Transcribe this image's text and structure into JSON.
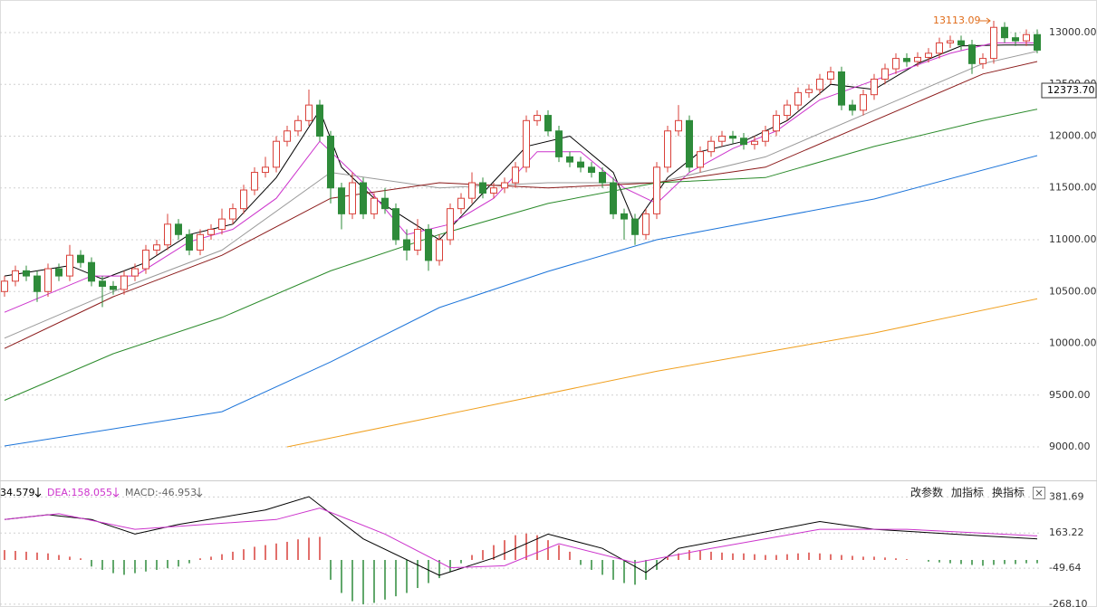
{
  "chart_data": [
    {
      "type": "candlestick",
      "open": [
        10500,
        10600,
        10700,
        10650,
        10500,
        10720,
        10650,
        10850,
        10780,
        10600,
        10550,
        10520,
        10650,
        10720,
        10900,
        10950,
        11150,
        11050,
        10900,
        11050,
        11100,
        11200,
        11300,
        11480,
        11650,
        11700,
        11950,
        12050,
        12150,
        12300,
        12000,
        11500,
        11250,
        11550,
        11250,
        11400,
        11300,
        11000,
        10900,
        11100,
        10800,
        11000,
        11300,
        11400,
        11550,
        11450,
        11500,
        11550,
        11700,
        12150,
        12200,
        12050,
        11800,
        11750,
        11700,
        11650,
        11550,
        11250,
        11200,
        11050,
        11250,
        11700,
        12050,
        12150,
        11700,
        11850,
        11950,
        12000,
        11980,
        11920,
        11950,
        12050,
        12200,
        12300,
        12420,
        12450,
        12550,
        12620,
        12300,
        12250,
        12400,
        12550,
        12650,
        12750,
        12720,
        12760,
        12800,
        12900,
        12920,
        12880,
        12700,
        12750,
        13050,
        12950,
        12920,
        12980
      ],
      "high": [
        10650,
        10750,
        10750,
        10700,
        10770,
        10770,
        10950,
        10900,
        10830,
        10650,
        10600,
        10700,
        10770,
        10950,
        11000,
        11250,
        11200,
        11100,
        11100,
        11150,
        11300,
        11350,
        11530,
        11700,
        11800,
        12000,
        12100,
        12200,
        12450,
        12350,
        12050,
        11550,
        11650,
        11600,
        11450,
        11500,
        11350,
        11100,
        11200,
        11150,
        11050,
        11350,
        11450,
        11650,
        11600,
        11550,
        11600,
        11750,
        12200,
        12250,
        12250,
        12100,
        11850,
        11800,
        11750,
        11700,
        11600,
        11300,
        11250,
        11300,
        11750,
        12100,
        12300,
        12200,
        11900,
        12000,
        12050,
        12050,
        12030,
        12000,
        12100,
        12250,
        12350,
        12470,
        12500,
        12600,
        12670,
        12670,
        12350,
        12450,
        12600,
        12700,
        12800,
        12800,
        12810,
        12850,
        12950,
        12970,
        12970,
        12930,
        12800,
        13113.09,
        13100,
        13000,
        13030,
        13030
      ],
      "low": [
        10450,
        10550,
        10600,
        10400,
        10450,
        10600,
        10600,
        10730,
        10550,
        10350,
        10470,
        10470,
        10600,
        10670,
        10850,
        10900,
        11000,
        10850,
        10850,
        11000,
        11050,
        11150,
        11250,
        11430,
        11600,
        11650,
        11900,
        12000,
        12100,
        11950,
        11350,
        11100,
        11200,
        11200,
        11200,
        11250,
        10950,
        10800,
        10850,
        10700,
        10750,
        10950,
        11250,
        11350,
        11400,
        11400,
        11450,
        11500,
        11650,
        12100,
        12000,
        11750,
        11700,
        11650,
        11600,
        11500,
        11200,
        11000,
        10950,
        11000,
        11200,
        11650,
        12000,
        11650,
        11650,
        11800,
        11900,
        11930,
        11870,
        11870,
        11900,
        12000,
        12150,
        12250,
        12370,
        12400,
        12500,
        12250,
        12200,
        12200,
        12350,
        12500,
        12600,
        12670,
        12670,
        12710,
        12750,
        12850,
        12830,
        12600,
        12650,
        12700,
        12900,
        12870,
        12870,
        12800
      ],
      "close": [
        10600,
        10700,
        10650,
        10500,
        10720,
        10650,
        10850,
        10780,
        10600,
        10550,
        10520,
        10650,
        10720,
        10900,
        10950,
        11150,
        11050,
        10900,
        11050,
        11100,
        11200,
        11300,
        11480,
        11650,
        11700,
        11950,
        12050,
        12150,
        12300,
        12000,
        11500,
        11250,
        11550,
        11250,
        11400,
        11300,
        11000,
        10900,
        11100,
        10800,
        11000,
        11300,
        11400,
        11550,
        11450,
        11500,
        11550,
        11700,
        12150,
        12200,
        12050,
        11800,
        11750,
        11700,
        11650,
        11550,
        11250,
        11200,
        11050,
        11250,
        11700,
        12050,
        12150,
        11700,
        11850,
        11950,
        12000,
        11980,
        11920,
        11950,
        12050,
        12200,
        12300,
        12420,
        12450,
        12550,
        12620,
        12300,
        12250,
        12400,
        12550,
        12650,
        12750,
        12720,
        12760,
        12800,
        12900,
        12920,
        12880,
        12700,
        12750,
        13050,
        12950,
        12920,
        12980,
        12830
      ],
      "up_color": "#d9413a",
      "down_color": "#2e8b3a",
      "lines": [
        {
          "color": "#000000",
          "x": [
            0,
            6,
            9,
            13,
            17,
            21,
            25,
            29,
            31,
            34,
            37,
            40,
            44,
            48,
            52,
            56,
            58,
            61,
            64,
            68,
            72,
            76,
            80,
            84,
            88,
            92,
            95
          ],
          "values": [
            10650,
            10750,
            10620,
            10780,
            11050,
            11150,
            11600,
            12250,
            11700,
            11400,
            11200,
            11000,
            11450,
            11900,
            12000,
            11650,
            11150,
            11600,
            11850,
            11950,
            12150,
            12500,
            12450,
            12700,
            12870,
            12880,
            12880
          ]
        },
        {
          "color": "#cc33cc",
          "x": [
            0,
            8,
            12,
            17,
            21,
            25,
            29,
            33,
            37,
            41,
            45,
            49,
            53,
            57,
            60,
            63,
            67,
            71,
            75,
            79,
            83,
            87,
            91,
            95
          ],
          "values": [
            10300,
            10650,
            10650,
            10980,
            11100,
            11400,
            11950,
            11550,
            11050,
            11150,
            11400,
            11850,
            11850,
            11500,
            11350,
            11650,
            11880,
            12050,
            12350,
            12500,
            12650,
            12800,
            12900,
            12900
          ]
        },
        {
          "color": "#999999",
          "x": [
            0,
            10,
            20,
            30,
            40,
            50,
            60,
            70,
            80,
            90,
            95
          ],
          "values": [
            10050,
            10500,
            10900,
            11650,
            11500,
            11550,
            11550,
            11800,
            12250,
            12700,
            12820
          ]
        },
        {
          "color": "#8b1a1a",
          "x": [
            0,
            10,
            20,
            30,
            40,
            50,
            60,
            70,
            80,
            90,
            95
          ],
          "values": [
            9950,
            10450,
            10850,
            11400,
            11550,
            11500,
            11550,
            11700,
            12150,
            12600,
            12720
          ]
        },
        {
          "color": "#2a8a2a",
          "x": [
            0,
            10,
            20,
            30,
            40,
            50,
            60,
            70,
            80,
            90,
            95
          ],
          "values": [
            9450,
            9900,
            10250,
            10700,
            11050,
            11350,
            11550,
            11600,
            11900,
            12150,
            12260
          ]
        },
        {
          "color": "#1a73d9",
          "x": [
            0,
            20,
            30,
            40,
            50,
            60,
            80,
            95
          ],
          "values": [
            9009,
            9340,
            9820,
            10345,
            10694,
            11000,
            11393,
            11812
          ]
        },
        {
          "color": "#f0a020",
          "x": [
            26,
            40,
            60,
            80,
            95
          ],
          "values": [
            9000,
            9300,
            9730,
            10100,
            10430
          ]
        }
      ],
      "ylim": [
        8686,
        13314
      ],
      "yticks": [
        {
          "value": 9000,
          "label": "9000.00"
        },
        {
          "value": 9500,
          "label": "9500.00"
        },
        {
          "value": 10000,
          "label": "10000.00"
        },
        {
          "value": 10500,
          "label": "10500.00"
        },
        {
          "value": 11000,
          "label": "11000.00"
        },
        {
          "value": 11500,
          "label": "11500.00"
        },
        {
          "value": 12000,
          "label": "12000.00"
        },
        {
          "value": 12500,
          "label": "12500.00"
        },
        {
          "value": 13000,
          "label": "13000.00"
        }
      ],
      "grid": true,
      "max_label": "13113.09",
      "last_price_label": "12373.70"
    },
    {
      "type": "macd",
      "legend": [
        {
          "text": "34.579",
          "color": "#000000"
        },
        {
          "text": "DEA:158.055",
          "color": "#cc33cc"
        },
        {
          "text": "MACD:-46.953",
          "color": "#666666"
        }
      ],
      "buttons": [
        "改参数",
        "加指标",
        "换指标"
      ],
      "lines": [
        {
          "color": "#000000",
          "x": [
            0,
            4,
            8,
            12,
            16,
            24,
            28,
            33,
            40,
            45,
            50,
            55,
            59,
            62,
            75,
            80,
            90,
            95
          ],
          "values": [
            245,
            274,
            245,
            157,
            215,
            303,
            384,
            128,
            -93,
            12,
            157,
            70,
            -76,
            70,
            233,
            186,
            146,
            128
          ]
        },
        {
          "color": "#cc33cc",
          "x": [
            0,
            5,
            12,
            25,
            29,
            35,
            41,
            46,
            51,
            58,
            65,
            75,
            83,
            95
          ],
          "values": [
            245,
            280,
            186,
            245,
            315,
            157,
            -47,
            -35,
            99,
            -17,
            70,
            186,
            186,
            146
          ]
        }
      ],
      "histogram": [
        60,
        55,
        50,
        45,
        40,
        30,
        20,
        10,
        -40,
        -60,
        -80,
        -90,
        -80,
        -70,
        -60,
        -50,
        -40,
        -20,
        10,
        20,
        35,
        50,
        65,
        80,
        90,
        100,
        110,
        125,
        135,
        140,
        -120,
        -200,
        -250,
        -268,
        -260,
        -240,
        -220,
        -200,
        -170,
        -140,
        -110,
        -70,
        -20,
        30,
        60,
        90,
        120,
        150,
        160,
        150,
        120,
        90,
        50,
        -30,
        -60,
        -90,
        -120,
        -140,
        -150,
        -120,
        -60,
        20,
        40,
        60,
        55,
        50,
        45,
        40,
        40,
        35,
        30,
        30,
        35,
        40,
        45,
        40,
        35,
        30,
        25,
        20,
        20,
        15,
        10,
        5,
        0,
        -10,
        -15,
        -20,
        -25,
        -30,
        -35,
        -30,
        -25,
        -25,
        -20,
        -20
      ],
      "up_color": "#d9413a",
      "down_color": "#2e8b3a",
      "ylim": [
        -285,
        477
      ],
      "yticks": [
        {
          "value": 381.69,
          "label": "381.69"
        },
        {
          "value": 163.22,
          "label": "163.22"
        },
        {
          "value": -49.64,
          "label": "-49.64"
        },
        {
          "value": -268.1,
          "label": "-268.10"
        }
      ],
      "grid": true
    }
  ]
}
